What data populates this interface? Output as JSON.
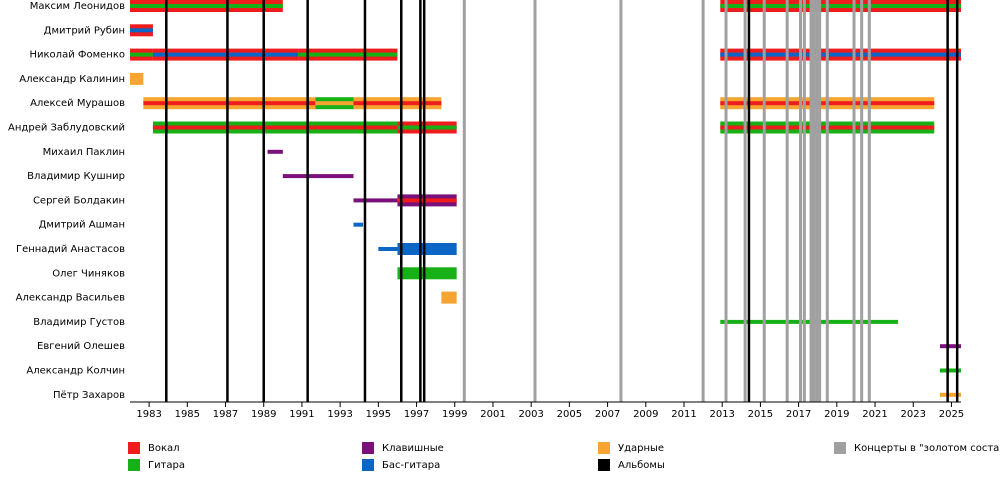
{
  "chart_data": {
    "type": "timeline",
    "xlim": [
      1982,
      2025.5
    ],
    "xticks": [
      1983,
      1985,
      1987,
      1989,
      1991,
      1993,
      1995,
      1997,
      1999,
      2001,
      2003,
      2005,
      2007,
      2009,
      2011,
      2013,
      2015,
      2017,
      2019,
      2021,
      2023,
      2025
    ],
    "roles": [
      {
        "name": "Вокал",
        "color": "#ee1c1c"
      },
      {
        "name": "Гитара",
        "color": "#17b017"
      },
      {
        "name": "Клавишные",
        "color": "#7a117a"
      },
      {
        "name": "Бас-гитара",
        "color": "#0b66c6"
      },
      {
        "name": "Ударные",
        "color": "#f6a532"
      }
    ],
    "albums": {
      "name": "Альбомы",
      "color": "#000000",
      "dates": [
        1983.9,
        1987.1,
        1989.0,
        1991.3,
        1994.3,
        1996.2,
        1997.2,
        1997.4,
        2014.4,
        2024.8,
        2025.3
      ]
    },
    "concerts": {
      "name": "Концерты в \"золотом составе\"",
      "color": "#a0a0a0",
      "dates": [
        1999.5,
        2003.2,
        2007.7,
        2012.0,
        2013.2,
        2014.2,
        2015.2,
        2016.4,
        2017.1,
        2017.3,
        2017.65,
        2017.8,
        2017.95,
        2018.1,
        2018.5,
        2019.9,
        2020.3,
        2020.7
      ]
    },
    "members": [
      {
        "name": "Максим Леонидов",
        "segments": [
          {
            "start": 1982,
            "end": 1990.0,
            "role": 0,
            "extra": 1
          },
          {
            "start": 2012.9,
            "end": 2025.5,
            "role": 0,
            "extra": 1
          }
        ]
      },
      {
        "name": "Дмитрий Рубин",
        "segments": [
          {
            "start": 1982,
            "end": 1983.2,
            "role": 0,
            "extra": 3
          }
        ]
      },
      {
        "name": "Николай Фоменко",
        "segments": [
          {
            "start": 1982,
            "end": 1983.2,
            "role": 0,
            "extra": 1
          },
          {
            "start": 1983.2,
            "end": 1990.8,
            "role": 0,
            "extra": 3
          },
          {
            "start": 1990.8,
            "end": 1996.0,
            "role": 0,
            "extra": 1
          },
          {
            "start": 2012.9,
            "end": 2025.5,
            "role": 0,
            "extra": 3
          }
        ]
      },
      {
        "name": "Александр Калинин",
        "segments": [
          {
            "start": 1982,
            "end": 1982.7,
            "role": 4
          }
        ]
      },
      {
        "name": "Алексей Мурашов",
        "segments": [
          {
            "start": 1982.7,
            "end": 1991.7,
            "role": 4,
            "extra": 0
          },
          {
            "start": 1991.7,
            "end": 1993.7,
            "role": 1,
            "extra": 4
          },
          {
            "start": 1993.7,
            "end": 1998.3,
            "role": 4,
            "extra": 0
          },
          {
            "start": 2012.9,
            "end": 2024.1,
            "role": 4,
            "extra": 0
          }
        ]
      },
      {
        "name": "Андрей Заблудовский",
        "segments": [
          {
            "start": 1983.2,
            "end": 1996.0,
            "role": 1,
            "extra": 0
          },
          {
            "start": 1996.0,
            "end": 1999.1,
            "role": 0,
            "extra": 1
          },
          {
            "start": 2012.9,
            "end": 2024.1,
            "role": 1,
            "extra": 0
          }
        ]
      },
      {
        "name": "Михаил Паклин",
        "segments": [
          {
            "start": 1989.2,
            "end": 1990.0,
            "extra": 2
          }
        ]
      },
      {
        "name": "Владимир Кушнир",
        "segments": [
          {
            "start": 1990.0,
            "end": 1993.7,
            "extra": 2
          }
        ]
      },
      {
        "name": "Сергей Болдакин",
        "segments": [
          {
            "start": 1993.7,
            "end": 1996.0,
            "extra": 2
          },
          {
            "start": 1996.0,
            "end": 1999.1,
            "role": 2,
            "extra": 0
          }
        ]
      },
      {
        "name": "Дмитрий Ашман",
        "segments": [
          {
            "start": 1993.7,
            "end": 1994.2,
            "extra": 3
          }
        ]
      },
      {
        "name": "Геннадий Анастасов",
        "segments": [
          {
            "start": 1995.0,
            "end": 1996.0,
            "extra": 3
          },
          {
            "start": 1996.0,
            "end": 1999.1,
            "role": 3
          }
        ]
      },
      {
        "name": "Олег Чиняков",
        "segments": [
          {
            "start": 1996.0,
            "end": 1999.1,
            "role": 1
          }
        ]
      },
      {
        "name": "Александр Васильев",
        "segments": [
          {
            "start": 1998.3,
            "end": 1999.1,
            "role": 4
          }
        ]
      },
      {
        "name": "Владимир Густов",
        "segments": [
          {
            "start": 2012.9,
            "end": 2022.2,
            "extra": 1
          }
        ]
      },
      {
        "name": "Евгений Олешев",
        "segments": [
          {
            "start": 2024.4,
            "end": 2025.5,
            "extra": 2
          }
        ]
      },
      {
        "name": "Александр Колчин",
        "segments": [
          {
            "start": 2024.4,
            "end": 2025.5,
            "extra": 1
          }
        ]
      },
      {
        "name": "Пётр Захаров",
        "segments": [
          {
            "start": 2024.4,
            "end": 2025.5,
            "extra": 4
          }
        ]
      }
    ]
  }
}
